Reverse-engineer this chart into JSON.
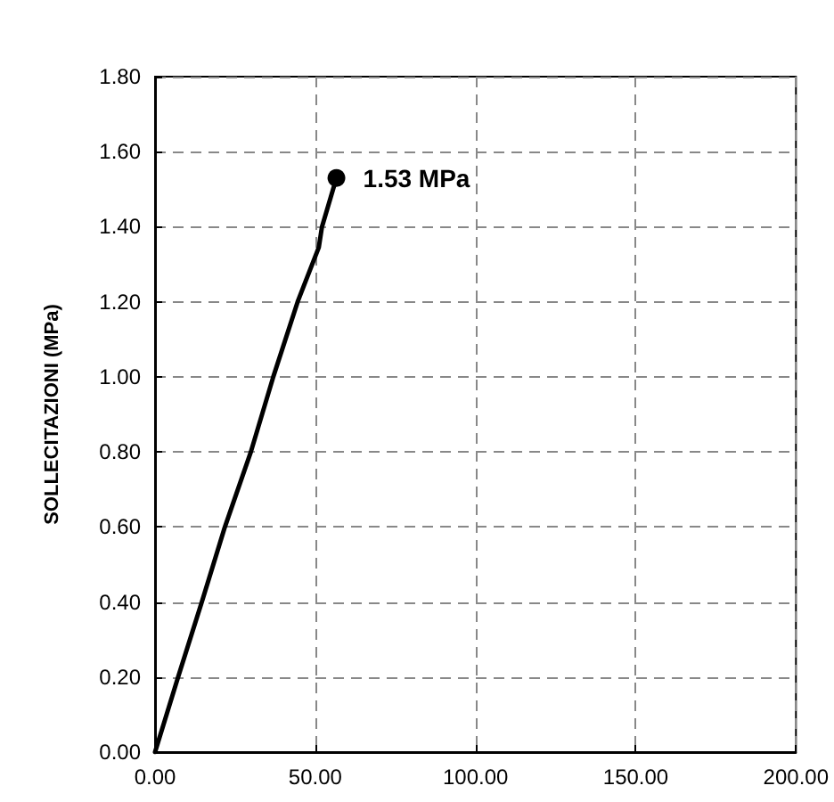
{
  "chart_data": {
    "type": "line",
    "ylabel": "SOLLECITAZIONI (MPa)",
    "series": [
      {
        "color": "#000000",
        "x": [
          0,
          7.2,
          14.6,
          21.8,
          29.9,
          36.9,
          44.5,
          51.1,
          52.1,
          56.6
        ],
        "values": [
          0,
          0.2,
          0.4,
          0.6,
          0.8,
          1.0,
          1.2,
          1.345,
          1.4,
          1.53
        ],
        "value_labels": [
          null,
          null,
          null,
          null,
          null,
          null,
          null,
          null,
          null,
          "1.53 MPa"
        ]
      }
    ],
    "xlim": [
      0,
      200
    ],
    "xticks": [
      {
        "value": 0,
        "label": "0.00"
      },
      {
        "value": 50,
        "label": "50.00"
      },
      {
        "value": 100,
        "label": "100.00"
      },
      {
        "value": 150,
        "label": "150.00"
      },
      {
        "value": 200,
        "label": "200.00"
      }
    ],
    "ylim": [
      0,
      1.8
    ],
    "yticks": [
      {
        "value": 0,
        "label": "0.00"
      },
      {
        "value": 0.2,
        "label": "0.20"
      },
      {
        "value": 0.4,
        "label": "0.40"
      },
      {
        "value": 0.6,
        "label": "0.60"
      },
      {
        "value": 0.8,
        "label": "0.80"
      },
      {
        "value": 1.0,
        "label": "1.00"
      },
      {
        "value": 1.2,
        "label": "1.20"
      },
      {
        "value": 1.4,
        "label": "1.40"
      },
      {
        "value": 1.6,
        "label": "1.60"
      },
      {
        "value": 1.8,
        "label": "1.80"
      }
    ],
    "grid": true
  }
}
